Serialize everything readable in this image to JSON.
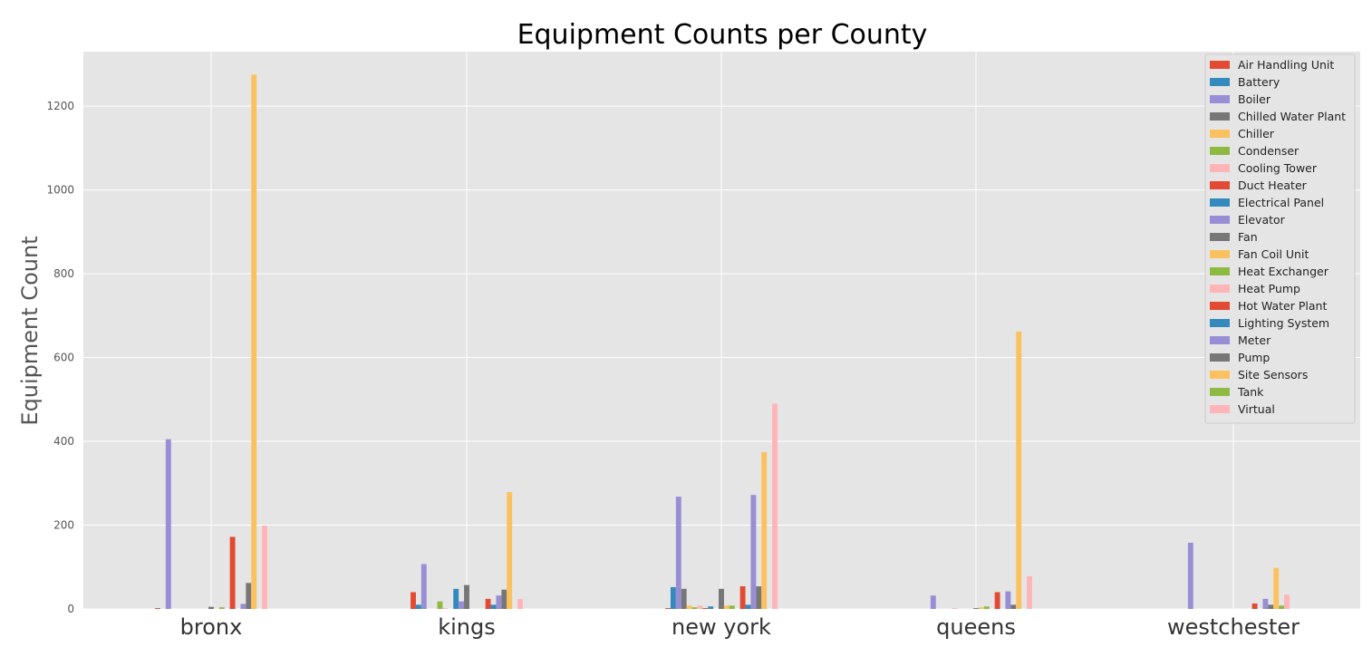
{
  "chart_data": {
    "type": "bar",
    "title": "Equipment Counts per County",
    "xlabel": "",
    "ylabel": "Equipment Count",
    "ylim": [
      0,
      1330
    ],
    "yticks": [
      0,
      200,
      400,
      600,
      800,
      1000,
      1200
    ],
    "grid": true,
    "legend_position": "top-right",
    "categories": [
      "bronx",
      "kings",
      "new york",
      "queens",
      "westchester"
    ],
    "series": [
      {
        "name": "Air Handling Unit",
        "color": "#E24A33",
        "values": [
          2,
          40,
          2,
          0,
          0
        ]
      },
      {
        "name": "Battery",
        "color": "#348ABD",
        "values": [
          0,
          10,
          52,
          0,
          0
        ]
      },
      {
        "name": "Boiler",
        "color": "#988ED5",
        "values": [
          405,
          107,
          268,
          32,
          158
        ]
      },
      {
        "name": "Chilled Water Plant",
        "color": "#777777",
        "values": [
          0,
          0,
          48,
          0,
          0
        ]
      },
      {
        "name": "Chiller",
        "color": "#FBC15E",
        "values": [
          0,
          0,
          8,
          0,
          0
        ]
      },
      {
        "name": "Condenser",
        "color": "#8EBA42",
        "values": [
          0,
          18,
          4,
          0,
          0
        ]
      },
      {
        "name": "Cooling Tower",
        "color": "#FFB5B8",
        "values": [
          0,
          2,
          8,
          2,
          0
        ]
      },
      {
        "name": "Duct Heater",
        "color": "#E24A33",
        "values": [
          0,
          0,
          2,
          0,
          0
        ]
      },
      {
        "name": "Electrical Panel",
        "color": "#348ABD",
        "values": [
          0,
          48,
          6,
          0,
          0
        ]
      },
      {
        "name": "Elevator",
        "color": "#988ED5",
        "values": [
          0,
          18,
          0,
          0,
          0
        ]
      },
      {
        "name": "Fan",
        "color": "#777777",
        "values": [
          5,
          57,
          48,
          2,
          0
        ]
      },
      {
        "name": "Fan Coil Unit",
        "color": "#FBC15E",
        "values": [
          0,
          0,
          8,
          4,
          0
        ]
      },
      {
        "name": "Heat Exchanger",
        "color": "#8EBA42",
        "values": [
          4,
          0,
          8,
          6,
          0
        ]
      },
      {
        "name": "Heat Pump",
        "color": "#FFB5B8",
        "values": [
          0,
          0,
          0,
          0,
          0
        ]
      },
      {
        "name": "Hot Water Plant",
        "color": "#E24A33",
        "values": [
          172,
          24,
          54,
          40,
          13
        ]
      },
      {
        "name": "Lighting System",
        "color": "#348ABD",
        "values": [
          0,
          10,
          10,
          0,
          0
        ]
      },
      {
        "name": "Meter",
        "color": "#988ED5",
        "values": [
          12,
          32,
          272,
          42,
          24
        ]
      },
      {
        "name": "Pump",
        "color": "#777777",
        "values": [
          62,
          46,
          54,
          10,
          10
        ]
      },
      {
        "name": "Site Sensors",
        "color": "#FBC15E",
        "values": [
          1275,
          279,
          374,
          662,
          98
        ]
      },
      {
        "name": "Tank",
        "color": "#8EBA42",
        "values": [
          0,
          0,
          0,
          0,
          8
        ]
      },
      {
        "name": "Virtual",
        "color": "#FFB5B8",
        "values": [
          199,
          24,
          490,
          78,
          34
        ]
      }
    ]
  }
}
